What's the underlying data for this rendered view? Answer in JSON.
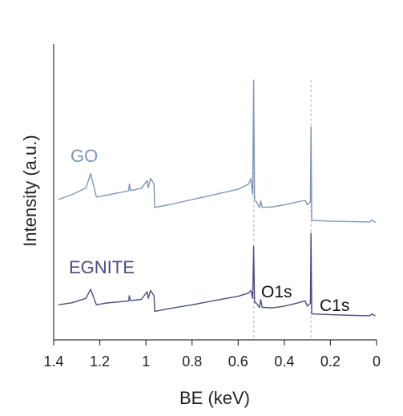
{
  "chart_data": {
    "type": "line",
    "xlabel": "BE (keV)",
    "ylabel": "Intensity (a.u.)",
    "xlim": [
      1.4,
      0
    ],
    "x_reversed": true,
    "x_ticks": [
      "1.4",
      "1.2",
      "1",
      "0.8",
      "0.6",
      "0.4",
      "0.2",
      "0"
    ],
    "y_ticks_shown": false,
    "colors": {
      "GO": "#7f95b8",
      "EGNITE": "#4a4e80"
    },
    "reference_lines": [
      {
        "x": 0.532,
        "label": "O1s"
      },
      {
        "x": 0.284,
        "label": "C1s"
      }
    ],
    "series": [
      {
        "name": "GO",
        "points": [
          [
            1.38,
            0.54
          ],
          [
            1.32,
            0.56
          ],
          [
            1.26,
            0.585
          ],
          [
            1.24,
            0.64
          ],
          [
            1.215,
            0.55
          ],
          [
            1.17,
            0.557
          ],
          [
            1.075,
            0.574
          ],
          [
            1.072,
            0.6
          ],
          [
            1.067,
            0.575
          ],
          [
            1.02,
            0.583
          ],
          [
            0.995,
            0.613
          ],
          [
            0.99,
            0.586
          ],
          [
            0.98,
            0.622
          ],
          [
            0.965,
            0.6
          ],
          [
            0.962,
            0.51
          ],
          [
            0.9,
            0.52
          ],
          [
            0.8,
            0.54
          ],
          [
            0.7,
            0.56
          ],
          [
            0.6,
            0.58
          ],
          [
            0.555,
            0.6
          ],
          [
            0.545,
            0.62
          ],
          [
            0.537,
            0.56
          ],
          [
            0.533,
            1.0
          ],
          [
            0.529,
            0.54
          ],
          [
            0.52,
            0.53
          ],
          [
            0.508,
            0.51
          ],
          [
            0.502,
            0.535
          ],
          [
            0.496,
            0.51
          ],
          [
            0.45,
            0.512
          ],
          [
            0.4,
            0.52
          ],
          [
            0.35,
            0.53
          ],
          [
            0.31,
            0.537
          ],
          [
            0.3,
            0.52
          ],
          [
            0.287,
            0.53
          ],
          [
            0.284,
            0.82
          ],
          [
            0.281,
            0.46
          ],
          [
            0.2,
            0.457
          ],
          [
            0.1,
            0.455
          ],
          [
            0.03,
            0.454
          ],
          [
            0.02,
            0.462
          ],
          [
            0.005,
            0.452
          ]
        ]
      },
      {
        "name": "EGNITE",
        "points": [
          [
            1.38,
            0.135
          ],
          [
            1.32,
            0.143
          ],
          [
            1.26,
            0.16
          ],
          [
            1.24,
            0.195
          ],
          [
            1.215,
            0.135
          ],
          [
            1.17,
            0.142
          ],
          [
            1.075,
            0.15
          ],
          [
            1.072,
            0.17
          ],
          [
            1.067,
            0.151
          ],
          [
            1.02,
            0.156
          ],
          [
            0.995,
            0.185
          ],
          [
            0.99,
            0.16
          ],
          [
            0.98,
            0.19
          ],
          [
            0.965,
            0.17
          ],
          [
            0.962,
            0.11
          ],
          [
            0.9,
            0.12
          ],
          [
            0.8,
            0.135
          ],
          [
            0.7,
            0.152
          ],
          [
            0.6,
            0.168
          ],
          [
            0.555,
            0.18
          ],
          [
            0.545,
            0.19
          ],
          [
            0.537,
            0.16
          ],
          [
            0.533,
            0.36
          ],
          [
            0.529,
            0.145
          ],
          [
            0.52,
            0.14
          ],
          [
            0.508,
            0.125
          ],
          [
            0.502,
            0.155
          ],
          [
            0.496,
            0.125
          ],
          [
            0.45,
            0.123
          ],
          [
            0.4,
            0.13
          ],
          [
            0.35,
            0.14
          ],
          [
            0.31,
            0.15
          ],
          [
            0.3,
            0.13
          ],
          [
            0.287,
            0.14
          ],
          [
            0.284,
            0.41
          ],
          [
            0.281,
            0.1
          ],
          [
            0.2,
            0.097
          ],
          [
            0.1,
            0.094
          ],
          [
            0.03,
            0.093
          ],
          [
            0.02,
            0.1
          ],
          [
            0.005,
            0.092
          ]
        ]
      }
    ]
  }
}
